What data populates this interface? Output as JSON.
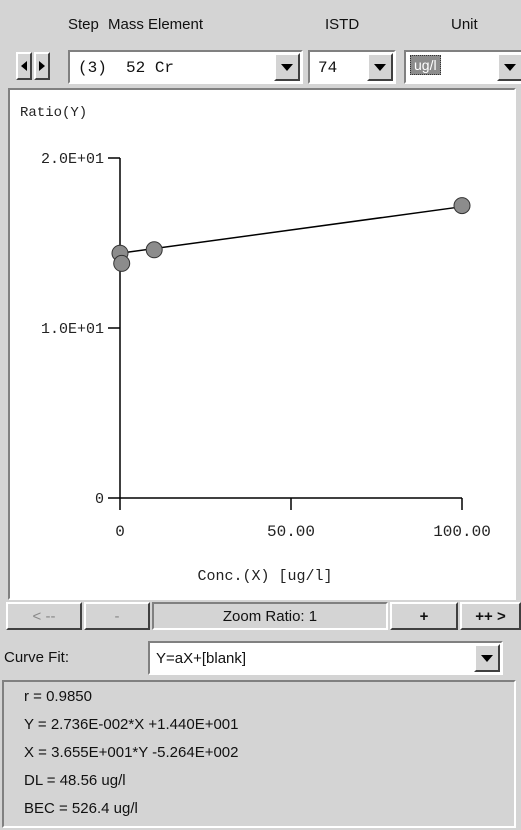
{
  "header": {
    "step_label": "Step",
    "mass_element_label": "Mass Element",
    "istd_label": "ISTD",
    "unit_label": "Unit"
  },
  "selectors": {
    "element_value": "(3)  52 Cr",
    "istd_value": "74",
    "unit_value": "ug/l"
  },
  "chart_data": {
    "type": "scatter",
    "ylabel": "Ratio(Y)",
    "xlabel": "Conc.(X) [ug/l]",
    "y_ticks": [
      "2.0E+01",
      "1.0E+01",
      "0"
    ],
    "x_ticks": [
      "0",
      "50.00",
      "100.00"
    ],
    "xlim": [
      0,
      100
    ],
    "ylim": [
      0,
      20
    ],
    "points": [
      {
        "x": 0,
        "y": 14.4
      },
      {
        "x": 0.5,
        "y": 13.8
      },
      {
        "x": 10,
        "y": 14.6
      },
      {
        "x": 100,
        "y": 17.2
      }
    ],
    "fit_line": {
      "x": [
        0,
        100
      ],
      "y": [
        14.4,
        17.136
      ]
    },
    "grid": false
  },
  "zoom": {
    "zoom_out_far": "< --",
    "zoom_out": "-",
    "ratio_text": "Zoom Ratio: 1",
    "zoom_in": "+",
    "zoom_in_far": "++ >"
  },
  "curve_fit": {
    "label": "Curve Fit:",
    "value": "Y=aX+[blank]"
  },
  "results": {
    "r": "r = 0.9850",
    "y_eq": "Y = 2.736E-002*X +1.440E+001",
    "x_eq": "X = 3.655E+001*Y -5.264E+002",
    "dl": "DL = 48.56 ug/l",
    "bec": "BEC = 526.4 ug/l"
  },
  "colors": {
    "marker_fill": "#8c8c8c",
    "panel_bg": "#d4d4d4",
    "unit_highlight": "#8c8c8c"
  }
}
